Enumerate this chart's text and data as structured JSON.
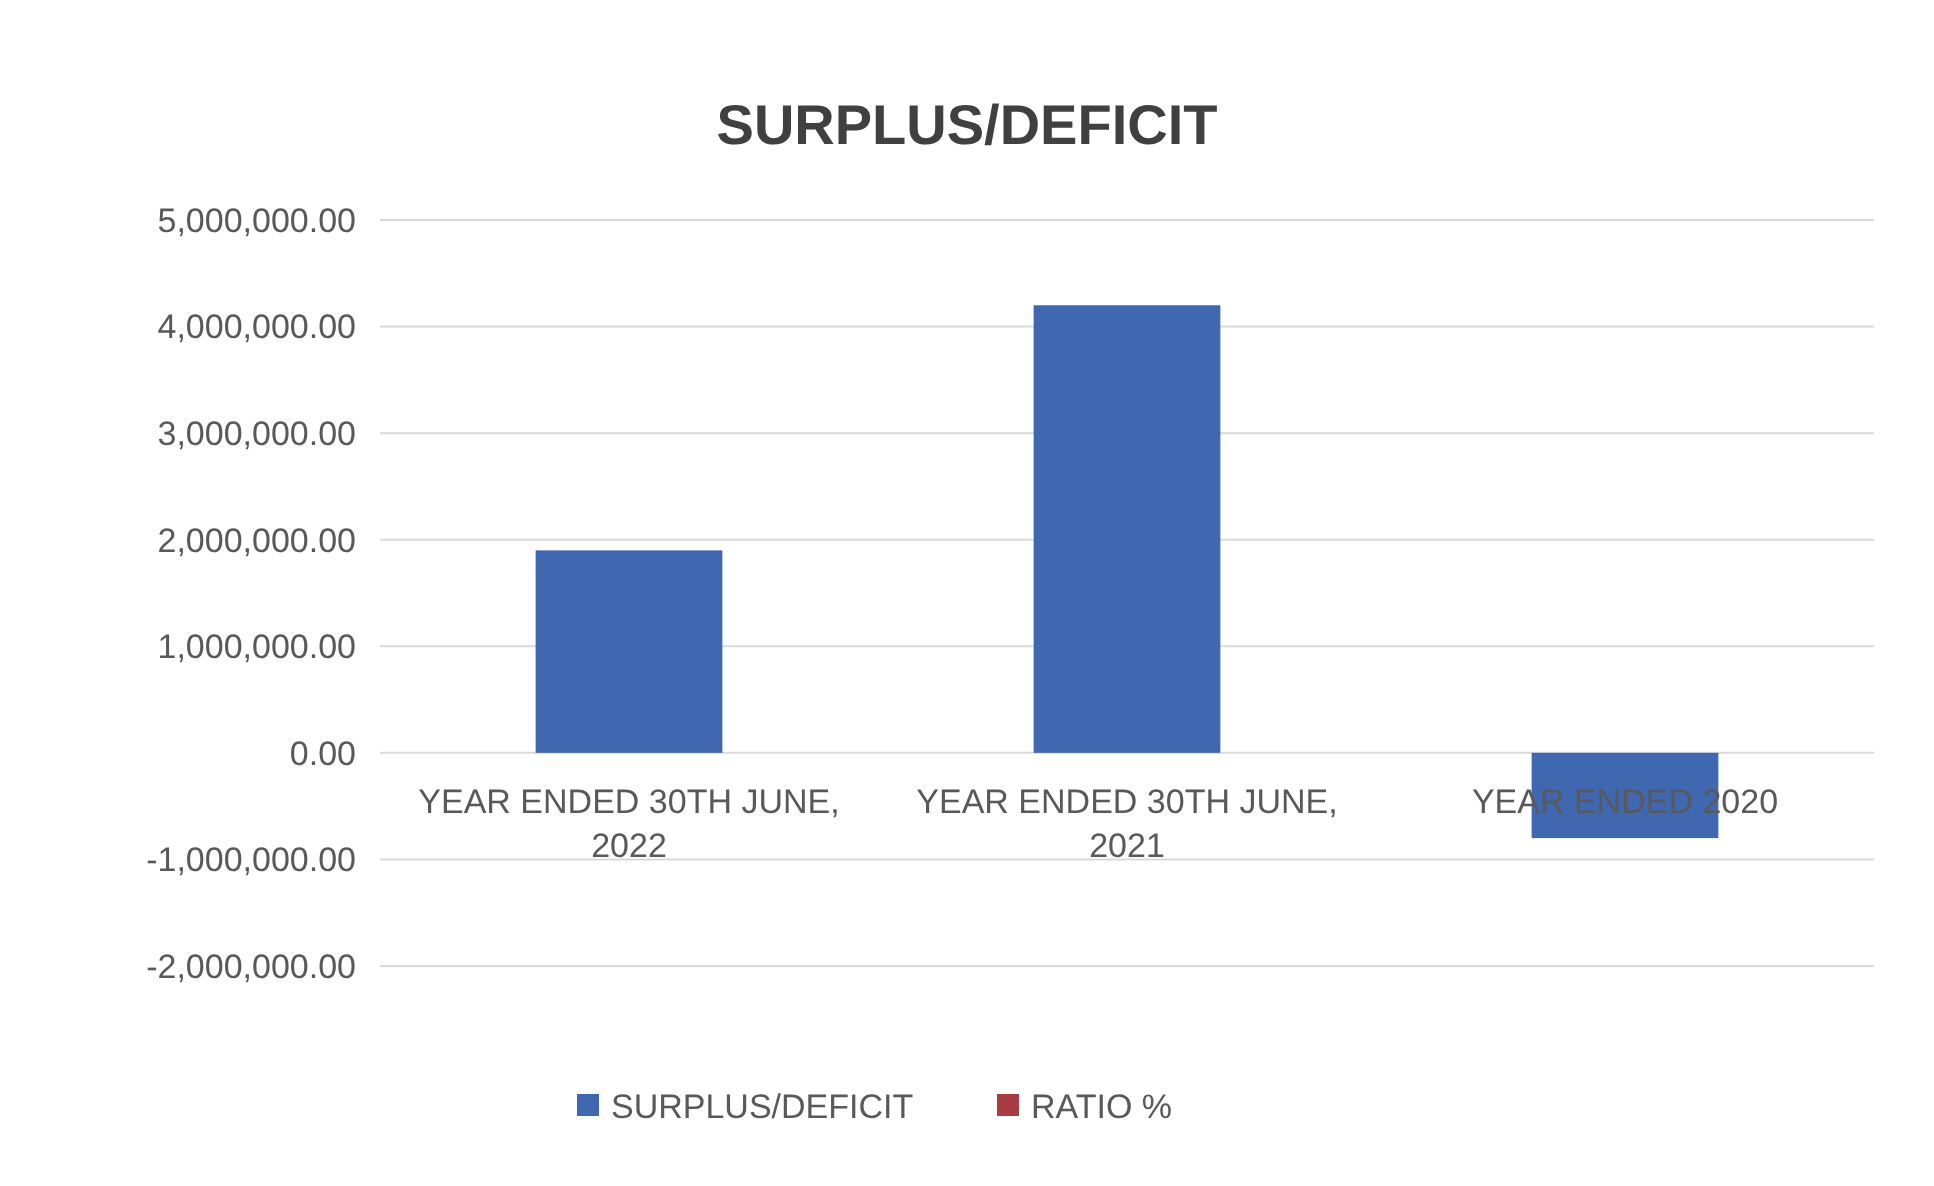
{
  "chart_data": {
    "type": "bar",
    "title": "SURPLUS/DEFICIT",
    "categories": [
      "YEAR ENDED 30TH JUNE, 2022",
      "YEAR ENDED 30TH JUNE, 2021",
      "YEAR ENDED 2020"
    ],
    "series": [
      {
        "name": "SURPLUS/DEFICIT",
        "color": "#4068b0",
        "values": [
          1900000,
          4200000,
          -800000
        ]
      },
      {
        "name": "RATIO %",
        "color": "#a83c42",
        "values": [
          null,
          null,
          null
        ]
      }
    ],
    "ylim": [
      -2000000,
      5000000
    ],
    "yticks": [
      {
        "value": -2000000,
        "label": "-2,000,000.00"
      },
      {
        "value": -1000000,
        "label": "-1,000,000.00"
      },
      {
        "value": 0,
        "label": "0.00"
      },
      {
        "value": 1000000,
        "label": "1,000,000.00"
      },
      {
        "value": 2000000,
        "label": "2,000,000.00"
      },
      {
        "value": 3000000,
        "label": "3,000,000.00"
      },
      {
        "value": 4000000,
        "label": "4,000,000.00"
      },
      {
        "value": 5000000,
        "label": "5,000,000.00"
      }
    ],
    "grid": "y",
    "legend": "bottom"
  }
}
